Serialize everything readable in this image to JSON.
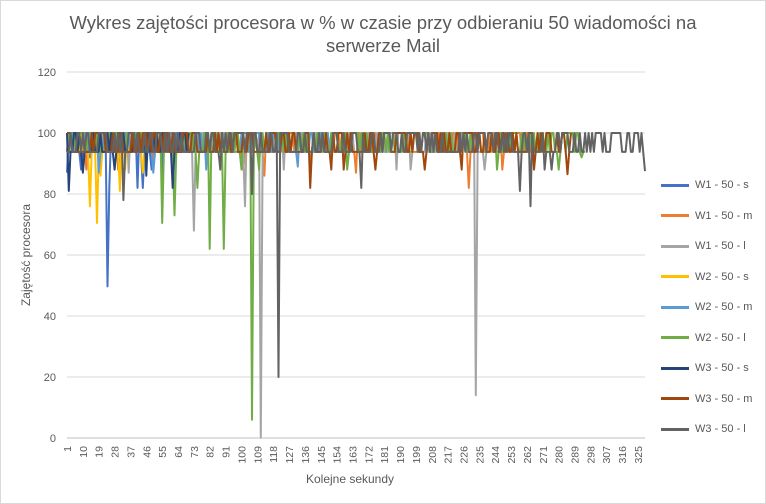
{
  "chart_data": {
    "type": "line",
    "title_lines": [
      "Wykres zajętości procesora w % w czasie przy odbieraniu 50 wiadomości na",
      "serwerze Mail"
    ],
    "xlabel": "Kolejne sekundy",
    "ylabel": "Zajętość procesora",
    "ylim": [
      0,
      120
    ],
    "yticks": [
      "0",
      "20",
      "40",
      "60",
      "80",
      "100",
      "120"
    ],
    "x_range": [
      1,
      329
    ],
    "x_tick_labels": [
      "1",
      "10",
      "19",
      "28",
      "37",
      "46",
      "55",
      "64",
      "73",
      "82",
      "91",
      "100",
      "109",
      "118",
      "127",
      "136",
      "145",
      "154",
      "163",
      "172",
      "181",
      "190",
      "199",
      "208",
      "217",
      "226",
      "235",
      "244",
      "253",
      "262",
      "271",
      "280",
      "289",
      "298",
      "307",
      "316",
      "325"
    ],
    "grid": true,
    "legend_position": "right",
    "series": [
      {
        "name": "W1 - 50 - s",
        "color": "#4472c4",
        "length": 68,
        "base": [
          93.8,
          100
        ],
        "dips": [
          [
            1,
            87
          ],
          [
            9,
            88
          ],
          [
            14,
            92
          ],
          [
            24,
            49.7
          ],
          [
            25,
            82
          ],
          [
            31,
            88
          ],
          [
            41,
            82
          ],
          [
            44,
            82
          ],
          [
            49,
            88
          ],
          [
            55,
            86
          ]
        ]
      },
      {
        "name": "W1 - 50 - m",
        "color": "#ed7d31",
        "length": 265,
        "base": [
          93.8,
          100
        ],
        "dips": [
          [
            12,
            88
          ],
          [
            30,
            88
          ],
          [
            50,
            88
          ],
          [
            101,
            88
          ],
          [
            113,
            86
          ],
          [
            139,
            88
          ],
          [
            165,
            87
          ],
          [
            229,
            82
          ],
          [
            248,
            88
          ]
        ]
      },
      {
        "name": "W1 - 50 - l",
        "color": "#a5a5a5",
        "length": 241,
        "base": [
          93.8,
          100
        ],
        "dips": [
          [
            20,
            88
          ],
          [
            36,
            87
          ],
          [
            73,
            68
          ],
          [
            102,
            76
          ],
          [
            111,
            0
          ],
          [
            124,
            88
          ],
          [
            188,
            88
          ],
          [
            196,
            88
          ],
          [
            233,
            14
          ],
          [
            238,
            88
          ]
        ]
      },
      {
        "name": "W2 - 50 - s",
        "color": "#ffc000",
        "length": 50,
        "base": [
          93.8,
          100
        ],
        "dips": [
          [
            14,
            76
          ],
          [
            18,
            70.5
          ],
          [
            20,
            86
          ],
          [
            31,
            81
          ],
          [
            34,
            88
          ],
          [
            44,
            87
          ]
        ]
      },
      {
        "name": "W2 - 50 - m",
        "color": "#5b9bd5",
        "length": 152,
        "base": [
          93.8,
          100
        ],
        "dips": [
          [
            19,
            87
          ],
          [
            50,
            87
          ],
          [
            80,
            88
          ],
          [
            132,
            89
          ]
        ]
      },
      {
        "name": "W2 - 50 - l",
        "color": "#70ad47",
        "length": 295,
        "base": [
          93.8,
          100
        ],
        "dips": [
          [
            55,
            70.5
          ],
          [
            62,
            73
          ],
          [
            75,
            82
          ],
          [
            82,
            62
          ],
          [
            90,
            62
          ],
          [
            100,
            88
          ],
          [
            106,
            6
          ],
          [
            110,
            88
          ],
          [
            160,
            88
          ],
          [
            245,
            88
          ],
          [
            280,
            88
          ],
          [
            293,
            92
          ]
        ]
      },
      {
        "name": "W3 - 50 - s",
        "color": "#264478",
        "length": 70,
        "base": [
          93.8,
          100
        ],
        "dips": [
          [
            2,
            81
          ],
          [
            10,
            87
          ],
          [
            28,
            88
          ],
          [
            46,
            86
          ],
          [
            61,
            82
          ]
        ]
      },
      {
        "name": "W3 - 50 - m",
        "color": "#9e480e",
        "length": 287,
        "base": [
          93.8,
          100
        ],
        "dips": [
          [
            139,
            82
          ],
          [
            151,
            88
          ],
          [
            158,
            88
          ],
          [
            176,
            88
          ],
          [
            204,
            88
          ],
          [
            225,
            88
          ],
          [
            266,
            88
          ],
          [
            285,
            86.5
          ]
        ]
      },
      {
        "name": "W3 - 50 - l",
        "color": "#636363",
        "length": 329,
        "base": [
          93.8,
          100
        ],
        "dips": [
          [
            33,
            78
          ],
          [
            88,
            88
          ],
          [
            106,
            80
          ],
          [
            121,
            20
          ],
          [
            168,
            82
          ],
          [
            258,
            81
          ],
          [
            264,
            76
          ],
          [
            272,
            88
          ],
          [
            276,
            88
          ],
          [
            329,
            87.5
          ]
        ]
      }
    ]
  }
}
